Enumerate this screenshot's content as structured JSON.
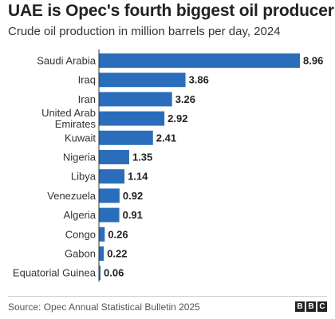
{
  "title": "UAE is Opec's fourth biggest oil producer",
  "subtitle": "Crude oil production in million barrels per day, 2024",
  "source": "Source: Opec Annual Statistical Bulletin 2025",
  "logo": [
    "B",
    "B",
    "C"
  ],
  "colors": {
    "bar": "#2a6ebb",
    "text": "#222222"
  },
  "chart_data": {
    "type": "bar",
    "orientation": "horizontal",
    "title": "UAE is Opec's fourth biggest oil producer",
    "subtitle": "Crude oil production in million barrels per day, 2024",
    "categories": [
      [
        "Saudi Arabia"
      ],
      [
        "Iraq"
      ],
      [
        "Iran"
      ],
      [
        "United Arab",
        "Emirates"
      ],
      [
        "Kuwait"
      ],
      [
        "Nigeria"
      ],
      [
        "Libya"
      ],
      [
        "Venezuela"
      ],
      [
        "Algeria"
      ],
      [
        "Congo"
      ],
      [
        "Gabon"
      ],
      [
        "Equatorial Guinea"
      ]
    ],
    "values": [
      8.96,
      3.86,
      3.26,
      2.92,
      2.41,
      1.35,
      1.14,
      0.92,
      0.91,
      0.26,
      0.22,
      0.06
    ],
    "value_labels": [
      "8.96",
      "3.86",
      "3.26",
      "2.92",
      "2.41",
      "1.35",
      "1.14",
      "0.92",
      "0.91",
      "0.26",
      "0.22",
      "0.06"
    ],
    "xlim": [
      0,
      8.96
    ],
    "grid": false,
    "legend": "none"
  }
}
